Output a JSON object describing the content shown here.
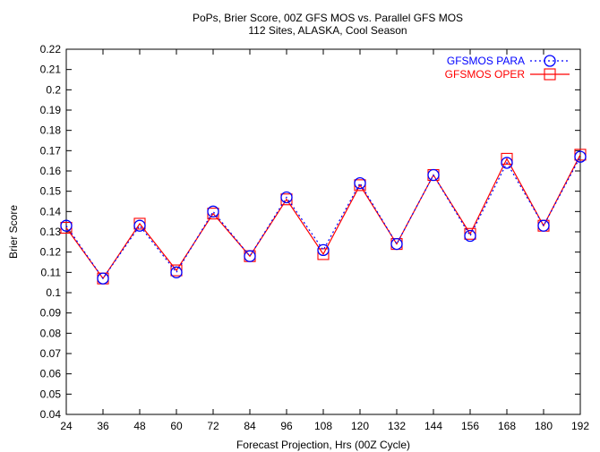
{
  "chart_data": {
    "type": "line",
    "title": "PoPs, Brier Score, 00Z GFS MOS vs. Parallel GFS MOS",
    "subtitle": "112 Sites, ALASKA, Cool Season",
    "xlabel": "Forecast Projection, Hrs (00Z Cycle)",
    "ylabel": "Brier Score",
    "x": [
      24,
      36,
      48,
      60,
      72,
      84,
      96,
      108,
      120,
      132,
      144,
      156,
      168,
      180,
      192
    ],
    "xlim": [
      24,
      192
    ],
    "ylim": [
      0.04,
      0.22
    ],
    "yticks": [
      0.04,
      0.05,
      0.06,
      0.07,
      0.08,
      0.09,
      0.1,
      0.11,
      0.12,
      0.13,
      0.14,
      0.15,
      0.16,
      0.17,
      0.18,
      0.19,
      0.2,
      0.21,
      0.22
    ],
    "grid": false,
    "legend_position": "top-right",
    "series": [
      {
        "name": "GFSMOS PARA",
        "color": "#0000ff",
        "marker": "circle",
        "line": "dotted",
        "values": [
          0.133,
          0.107,
          0.133,
          0.11,
          0.14,
          0.118,
          0.147,
          0.121,
          0.154,
          0.124,
          0.158,
          0.128,
          0.164,
          0.133,
          0.167
        ]
      },
      {
        "name": "GFSMOS OPER",
        "color": "#ff0000",
        "marker": "square",
        "line": "solid",
        "values": [
          0.132,
          0.107,
          0.134,
          0.111,
          0.139,
          0.118,
          0.146,
          0.119,
          0.153,
          0.124,
          0.158,
          0.129,
          0.166,
          0.133,
          0.168
        ]
      }
    ]
  }
}
